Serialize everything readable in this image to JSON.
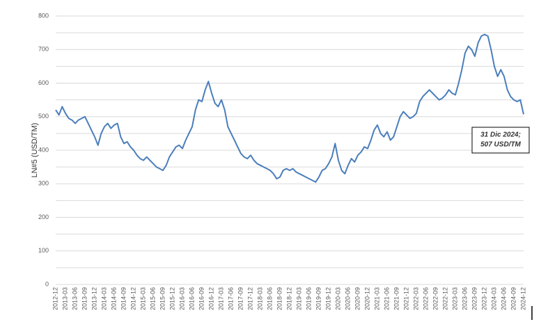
{
  "chart_data": {
    "type": "line",
    "y_label": "LN#5 (USD/TM)",
    "annotation": [
      "31 Dic 2024;",
      "507 USD/TM"
    ],
    "categories": [
      "2012-12",
      null,
      null,
      "2013-03",
      null,
      null,
      "2013-06",
      null,
      null,
      "2013-09",
      null,
      null,
      "2013-12",
      null,
      null,
      "2014-03",
      null,
      null,
      "2014-06",
      null,
      null,
      "2014-09",
      null,
      null,
      "2014-12",
      null,
      null,
      "2015-03",
      null,
      null,
      "2015-06",
      null,
      null,
      "2015-09",
      null,
      null,
      "2015-12",
      null,
      null,
      "2016-03",
      null,
      null,
      "2016-06",
      null,
      null,
      "2016-09",
      null,
      null,
      "2016-12",
      null,
      null,
      "2017-03",
      null,
      null,
      "2017-06",
      null,
      null,
      "2017-09",
      null,
      null,
      "2017-12",
      null,
      null,
      "2018-03",
      null,
      null,
      "2018-06",
      null,
      null,
      "2018-09",
      null,
      null,
      "2018-12",
      null,
      null,
      "2019-03",
      null,
      null,
      "2019-06",
      null,
      null,
      "2019-09",
      null,
      null,
      "2019-12",
      null,
      null,
      "2020-03",
      null,
      null,
      "2020-06",
      null,
      null,
      "2020-09",
      null,
      null,
      "2020-12",
      null,
      null,
      "2021-03",
      null,
      null,
      "2021-06",
      null,
      null,
      "2021-09",
      null,
      null,
      "2021-12",
      null,
      null,
      "2022-03",
      null,
      null,
      "2022-06",
      null,
      null,
      "2022-09",
      null,
      null,
      "2022-12",
      null,
      null,
      "2023-03",
      null,
      null,
      "2023-06",
      null,
      null,
      "2023-09",
      null,
      null,
      "2023-12",
      null,
      null,
      "2024-03",
      null,
      null,
      "2024-06",
      null,
      null,
      "2024-09",
      null,
      null,
      "2024-12"
    ],
    "series": [
      {
        "name": "LN#5",
        "color": "#4a7ebb",
        "values": [
          520,
          505,
          530,
          510,
          495,
          490,
          480,
          490,
          495,
          500,
          480,
          460,
          440,
          415,
          450,
          470,
          480,
          465,
          475,
          480,
          440,
          420,
          425,
          410,
          400,
          385,
          375,
          370,
          380,
          370,
          360,
          350,
          345,
          340,
          355,
          380,
          395,
          410,
          415,
          405,
          430,
          450,
          470,
          520,
          550,
          545,
          580,
          605,
          570,
          540,
          530,
          550,
          520,
          470,
          450,
          430,
          410,
          390,
          380,
          375,
          385,
          370,
          360,
          355,
          350,
          345,
          340,
          330,
          315,
          320,
          340,
          345,
          340,
          345,
          335,
          330,
          325,
          320,
          315,
          310,
          305,
          320,
          340,
          345,
          360,
          380,
          420,
          370,
          340,
          330,
          355,
          375,
          365,
          385,
          395,
          410,
          405,
          430,
          460,
          475,
          450,
          440,
          455,
          430,
          440,
          470,
          500,
          515,
          505,
          495,
          500,
          510,
          545,
          560,
          570,
          580,
          570,
          560,
          550,
          555,
          565,
          580,
          570,
          565,
          600,
          640,
          690,
          710,
          700,
          680,
          720,
          740,
          745,
          740,
          700,
          650,
          620,
          640,
          620,
          580,
          560,
          550,
          545,
          550,
          507
        ]
      }
    ],
    "ylim": [
      0,
      800
    ],
    "yticks": [
      0,
      100,
      200,
      300,
      400,
      500,
      600,
      700,
      800
    ],
    "grid": true,
    "minor_grid": true
  }
}
